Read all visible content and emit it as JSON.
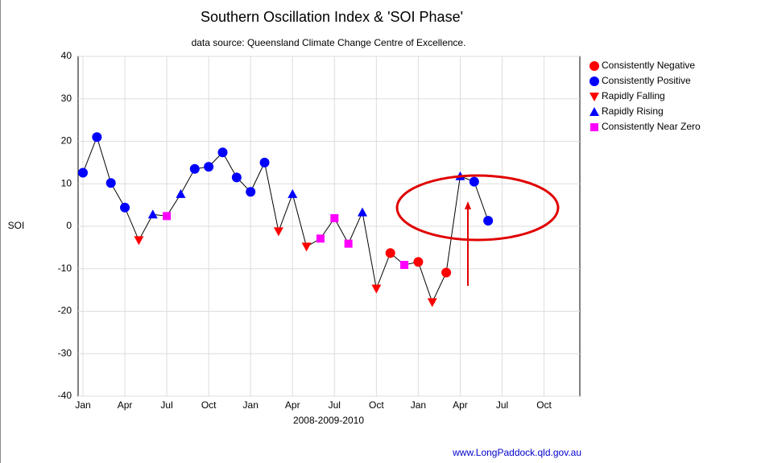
{
  "chart_data": {
    "type": "line",
    "title": "Southern Oscillation Index & 'SOI Phase'",
    "subtitle": "data source: Queensland Climate Change Centre of Excellence.",
    "y_label": "SOI",
    "x_label": "2008-2009-2010",
    "source": "www.LongPaddock.qld.gov.au",
    "categories": [
      "Jan",
      null,
      null,
      "Apr",
      null,
      null,
      "Jul",
      null,
      null,
      "Oct",
      null,
      null,
      "Jan",
      null,
      null,
      "Apr",
      null,
      null,
      "Jul",
      null,
      null,
      "Oct",
      null,
      null,
      "Jan",
      null,
      null,
      "Apr",
      null,
      null,
      "Jul",
      null,
      null,
      "Oct",
      null,
      null
    ],
    "ylim": [
      -40,
      40
    ],
    "yticks": [
      -40,
      -30,
      -20,
      -10,
      0,
      10,
      20,
      30,
      40
    ],
    "grid": true,
    "legend": "right",
    "line_color": "#000000",
    "series": [
      {
        "name": "Consistently Negative",
        "color": "#ff0000",
        "marker": "circle",
        "values": [
          null,
          null,
          null,
          null,
          null,
          null,
          null,
          null,
          null,
          null,
          null,
          null,
          null,
          null,
          null,
          null,
          null,
          null,
          null,
          null,
          null,
          null,
          -6.3,
          null,
          -8.4,
          null,
          -10.9,
          null,
          null,
          null,
          null,
          null,
          null,
          null,
          null,
          null
        ]
      },
      {
        "name": "Consistently Positive",
        "color": "#0000ff",
        "marker": "circle",
        "values": [
          12.6,
          21,
          10.2,
          4.4,
          null,
          null,
          null,
          null,
          13.5,
          14,
          17.4,
          11.5,
          8.1,
          15,
          null,
          null,
          null,
          null,
          null,
          null,
          null,
          null,
          null,
          null,
          null,
          null,
          null,
          null,
          10.5,
          1.3,
          null,
          null,
          null,
          null,
          null,
          null
        ]
      },
      {
        "name": "Rapidly Falling",
        "color": "#ff0000",
        "marker": "triangle-down",
        "values": [
          null,
          null,
          null,
          null,
          -3.3,
          null,
          null,
          null,
          null,
          null,
          null,
          null,
          null,
          null,
          -1.2,
          null,
          -4.8,
          null,
          null,
          null,
          null,
          -14.7,
          null,
          null,
          null,
          -17.9,
          null,
          null,
          null,
          null,
          null,
          null,
          null,
          null,
          null,
          null
        ]
      },
      {
        "name": "Rapidly Rising",
        "color": "#0000ff",
        "marker": "triangle-up",
        "values": [
          null,
          null,
          null,
          null,
          null,
          2.8,
          null,
          7.6,
          null,
          null,
          null,
          null,
          null,
          null,
          null,
          7.6,
          null,
          null,
          null,
          null,
          3.3,
          null,
          null,
          null,
          null,
          null,
          null,
          11.8,
          null,
          null,
          null,
          null,
          null,
          null,
          null,
          null
        ]
      },
      {
        "name": "Consistently Near Zero",
        "color": "#ff00ff",
        "marker": "square",
        "values": [
          null,
          null,
          null,
          null,
          null,
          null,
          2.4,
          null,
          null,
          null,
          null,
          null,
          null,
          null,
          null,
          null,
          null,
          -2.9,
          1.9,
          -4.1,
          null,
          null,
          null,
          -9.1,
          null,
          null,
          null,
          null,
          null,
          null,
          null,
          null,
          null,
          null,
          null,
          null
        ]
      }
    ]
  }
}
